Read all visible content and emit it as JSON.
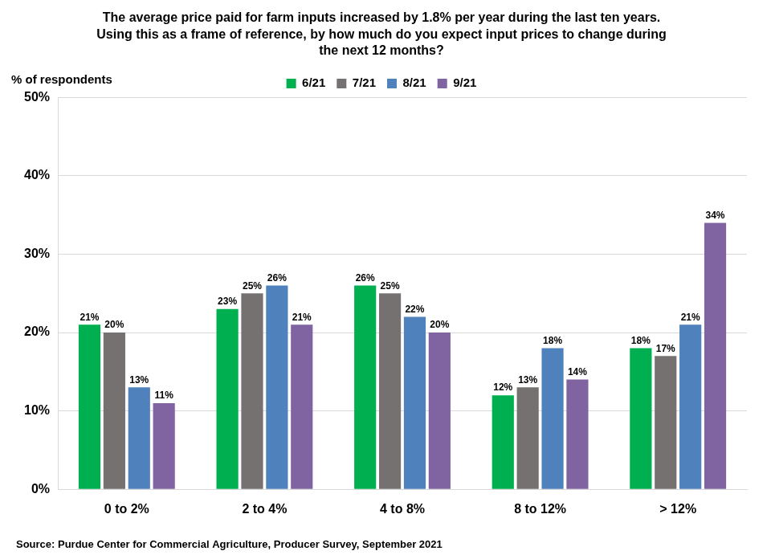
{
  "chart_data": {
    "type": "bar",
    "title": [
      "The average price paid for farm inputs increased by 1.8% per year during the last ten years.",
      "Using this as a frame of reference, by how much do you expect input prices to change during",
      "the next 12 months?"
    ],
    "y_label": "% of respondents",
    "source": "Source: Purdue Center for Commercial Agriculture, Producer Survey, September 2021",
    "categories": [
      "0 to 2%",
      "2 to 4%",
      "4 to 8%",
      "8 to 12%",
      "> 12%"
    ],
    "series": [
      {
        "name": "6/21",
        "color": "#00b050",
        "values": [
          21,
          23,
          26,
          12,
          18
        ],
        "value_labels": [
          "21%",
          "23%",
          "26%",
          "12%",
          "18%"
        ]
      },
      {
        "name": "7/21",
        "color": "#767171",
        "values": [
          20,
          25,
          25,
          13,
          17
        ],
        "value_labels": [
          "20%",
          "25%",
          "25%",
          "13%",
          "17%"
        ]
      },
      {
        "name": "8/21",
        "color": "#4f81bd",
        "values": [
          13,
          26,
          22,
          18,
          21
        ],
        "value_labels": [
          "13%",
          "26%",
          "22%",
          "18%",
          "21%"
        ]
      },
      {
        "name": "9/21",
        "color": "#8064a2",
        "values": [
          11,
          21,
          20,
          14,
          34
        ],
        "value_labels": [
          "11%",
          "21%",
          "20%",
          "14%",
          "34%"
        ]
      }
    ],
    "ylim": [
      0,
      50
    ],
    "yticks": [
      {
        "value": 0,
        "label": "0%"
      },
      {
        "value": 10,
        "label": "10%"
      },
      {
        "value": 20,
        "label": "20%"
      },
      {
        "value": 30,
        "label": "30%"
      },
      {
        "value": 40,
        "label": "40%"
      },
      {
        "value": 50,
        "label": "50%"
      }
    ],
    "grid": true,
    "legend": "top",
    "data_labels": true
  }
}
